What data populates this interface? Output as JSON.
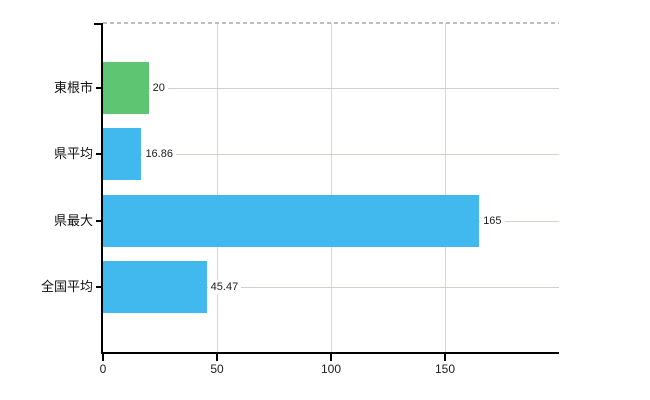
{
  "chart_data": {
    "type": "bar",
    "orientation": "horizontal",
    "title": "",
    "categories": [
      "東根市",
      "県平均",
      "県最大",
      "全国平均"
    ],
    "values": [
      20,
      16.86,
      165,
      45.47
    ],
    "value_labels": [
      "20",
      "16.86",
      "165",
      "45.47"
    ],
    "bar_colors": [
      "#5ec573",
      "#41b9ee",
      "#41b9ee",
      "#41b9ee"
    ],
    "x_ticks": [
      0,
      50,
      100,
      150
    ],
    "x_tick_labels": [
      "0",
      "50",
      "100",
      "150"
    ],
    "xlim": [
      0,
      200
    ],
    "grid": true,
    "legend": false
  },
  "style": {
    "accent_blue": "#41b9ee",
    "accent_green": "#5ec573",
    "axis_color": "#000000",
    "grid_color_horizontal": "#ccd3cb",
    "grid_color_vertical": "#d3d8d3",
    "top_border_color": "#b9c0b9",
    "text_color": "#1c1c1c",
    "background": "#ffffff"
  }
}
